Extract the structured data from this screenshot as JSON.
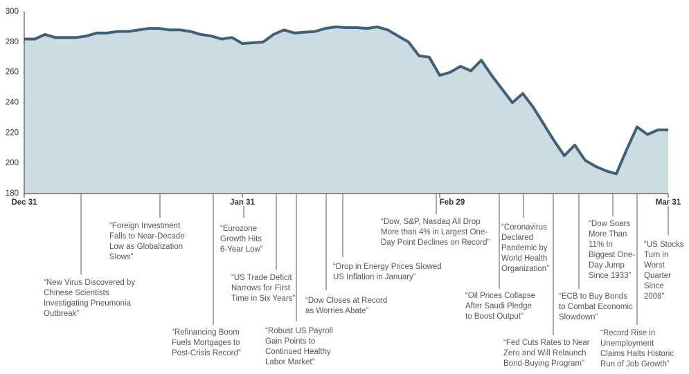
{
  "chart_data": {
    "type": "area",
    "categories": [
      "Dec 31",
      null,
      null,
      null,
      null,
      null,
      null,
      null,
      null,
      null,
      null,
      null,
      null,
      null,
      null,
      null,
      null,
      null,
      null,
      null,
      null,
      "Jan 31",
      null,
      null,
      null,
      null,
      null,
      null,
      null,
      null,
      null,
      null,
      null,
      null,
      null,
      null,
      null,
      null,
      null,
      null,
      "Feb 29",
      null,
      null,
      null,
      null,
      null,
      null,
      null,
      null,
      null,
      null,
      null,
      null,
      null,
      null,
      null,
      null,
      null,
      null,
      null,
      null,
      null,
      "Mar 31"
    ],
    "values": [
      282,
      282,
      285,
      283,
      283,
      283,
      284,
      286,
      286,
      287,
      287,
      288,
      289,
      289,
      288,
      288,
      287,
      285,
      284,
      282,
      283,
      279,
      279.5,
      280,
      285,
      288,
      286,
      286.5,
      287,
      289,
      290,
      289.5,
      289.5,
      289,
      290,
      288,
      284,
      280,
      271,
      270,
      258,
      260,
      264,
      261,
      268,
      258,
      249,
      240,
      246,
      237,
      226,
      215,
      205,
      212,
      202,
      198,
      195,
      193,
      209,
      224,
      219,
      222,
      222
    ],
    "color": "#3d6178",
    "fill": "#cddbe3",
    "ylim": [
      180,
      300
    ],
    "yticks": [
      180,
      200,
      220,
      240,
      260,
      280,
      300
    ],
    "annotations": [
      [
        "“New Virus Discovered by",
        "Chinese Scientists",
        "Investigating Pneumonia",
        "Outbreak”"
      ],
      [
        "“Foreign Investment",
        "Falls to Near-Decade",
        "Low as Globalization",
        "Slows”"
      ],
      [
        "“Refinancing Boom",
        "Fuels Mortgages to",
        "Post-Crisis Record”"
      ],
      [
        "“Eurozone",
        "Growth Hits",
        "6-Year Low”"
      ],
      [
        "“US Trade Deficit",
        "Narrows for First",
        "Time in Six Years”"
      ],
      [
        "“Robust US Payroll",
        "Gain Points to",
        "Continued Healthy",
        "Labor Market”"
      ],
      [
        "“Dow Closes at Record",
        "as Worries Abate”"
      ],
      [
        "“Drop in Energy Prices Slowed",
        "US Inflation in January”"
      ],
      [
        "“Dow, S&P, Nasdaq All Drop",
        "More than 4% in Largest One-",
        "Day Point Declines on Record”"
      ],
      [
        "“Oil Prices Collapse",
        "After Saudi Pledge",
        "to Boost Output”"
      ],
      [
        "“Coronavirus",
        "Declared",
        "Pandemic by",
        "World Health",
        "Organization”"
      ],
      [
        "“Fed Cuts Rates to Near",
        "Zero and Will Relaunch",
        "Bond-Buying Program”"
      ],
      [
        "“ECB to Buy Bonds",
        "to Combat Economic",
        "Slowdown”"
      ],
      [
        "“Dow Soars",
        "More Than",
        "11% In",
        "Biggest One-",
        "Day Jump",
        "Since 1933”"
      ],
      [
        "“Record Rise in",
        "Unemployment",
        "Claims Halts Historic",
        "Run of Job Growth”"
      ],
      [
        "“US Stocks",
        "Turn in",
        "Worst",
        "Quarter",
        "Since",
        "2008”"
      ]
    ]
  }
}
